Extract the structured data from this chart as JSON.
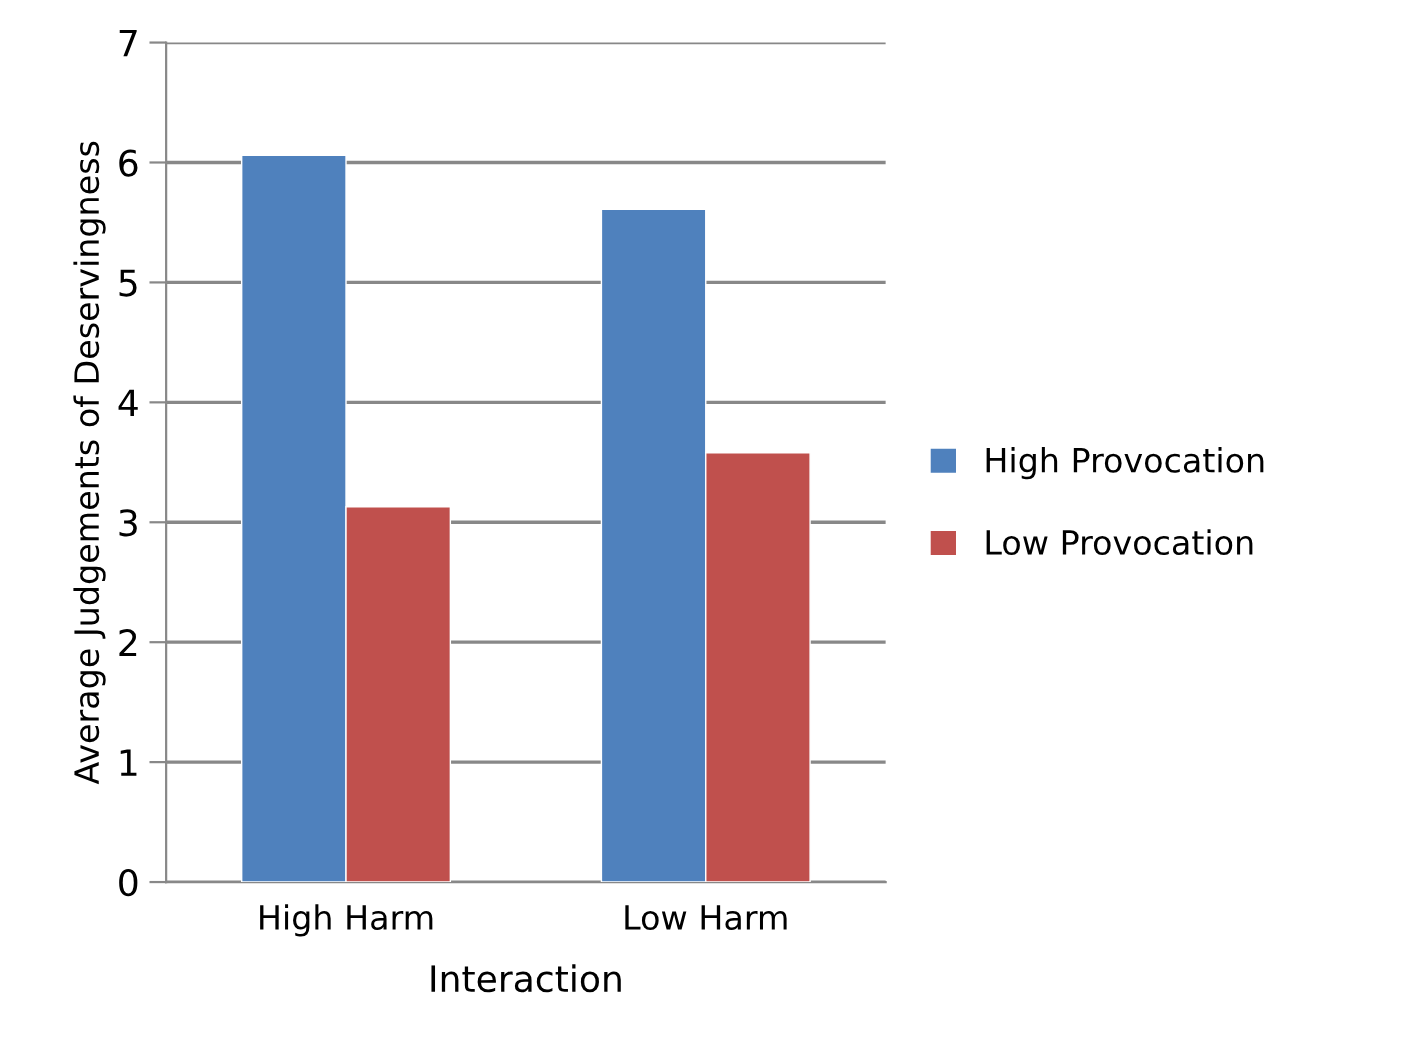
{
  "chart_data": {
    "type": "bar",
    "xlabel": "Interaction",
    "ylabel": "Average Judgements of Deservingness",
    "categories": [
      "High Harm",
      "Low Harm"
    ],
    "series": [
      {
        "name": "High Provocation",
        "color": "#4f81bd",
        "values": [
          6.06,
          5.61
        ]
      },
      {
        "name": "Low Provocation",
        "color": "#c0504d",
        "values": [
          3.13,
          3.58
        ]
      }
    ],
    "ylim": [
      0,
      7
    ],
    "yticks": [
      0,
      1,
      2,
      3,
      4,
      5,
      6,
      7
    ],
    "grid": "y",
    "legend": "right"
  }
}
